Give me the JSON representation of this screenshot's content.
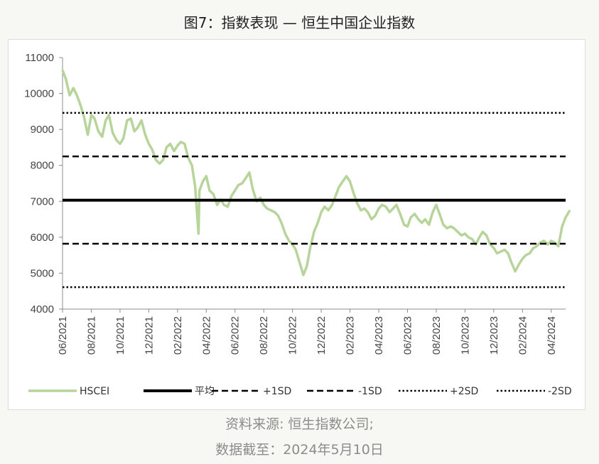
{
  "title": "图7：指数表现 — 恒生中国企业指数",
  "footer": {
    "source": "资料来源: 恒生指数公司;",
    "date": "数据截至：2024年5月10日"
  },
  "colors": {
    "hscei": "#b7d49a",
    "reference": "#000000",
    "axis": "#8c8c8c",
    "text": "#444444"
  },
  "chart_data": {
    "type": "line",
    "ylim": [
      4000,
      11000
    ],
    "yticks": [
      4000,
      5000,
      6000,
      7000,
      8000,
      9000,
      10000,
      11000
    ],
    "xlim": [
      "2021-06",
      "2024-05"
    ],
    "xticks": [
      "06/2021",
      "08/2021",
      "10/2021",
      "12/2021",
      "02/2022",
      "04/2022",
      "06/2022",
      "08/2022",
      "10/2022",
      "12/2022",
      "02/2023",
      "04/2023",
      "06/2023",
      "08/2023",
      "10/2023",
      "12/2023",
      "02/2024",
      "04/2024"
    ],
    "series": [
      {
        "name": "HSCEI",
        "style": "solid-thin",
        "points": [
          [
            "2021-06-01",
            10650
          ],
          [
            "2021-06-08",
            10400
          ],
          [
            "2021-06-16",
            9950
          ],
          [
            "2021-06-24",
            10150
          ],
          [
            "2021-07-01",
            9950
          ],
          [
            "2021-07-08",
            9700
          ],
          [
            "2021-07-16",
            9350
          ],
          [
            "2021-07-24",
            8850
          ],
          [
            "2021-08-01",
            9400
          ],
          [
            "2021-08-08",
            9300
          ],
          [
            "2021-08-16",
            8950
          ],
          [
            "2021-08-24",
            8800
          ],
          [
            "2021-09-01",
            9250
          ],
          [
            "2021-09-08",
            9400
          ],
          [
            "2021-09-16",
            8900
          ],
          [
            "2021-09-24",
            8700
          ],
          [
            "2021-10-01",
            8600
          ],
          [
            "2021-10-08",
            8750
          ],
          [
            "2021-10-16",
            9250
          ],
          [
            "2021-10-24",
            9300
          ],
          [
            "2021-11-01",
            8950
          ],
          [
            "2021-11-08",
            9050
          ],
          [
            "2021-11-16",
            9250
          ],
          [
            "2021-11-24",
            8850
          ],
          [
            "2021-12-01",
            8600
          ],
          [
            "2021-12-08",
            8450
          ],
          [
            "2021-12-16",
            8150
          ],
          [
            "2021-12-24",
            8050
          ],
          [
            "2022-01-01",
            8150
          ],
          [
            "2022-01-08",
            8500
          ],
          [
            "2022-01-16",
            8600
          ],
          [
            "2022-01-24",
            8400
          ],
          [
            "2022-02-01",
            8550
          ],
          [
            "2022-02-08",
            8650
          ],
          [
            "2022-02-16",
            8600
          ],
          [
            "2022-02-24",
            8200
          ],
          [
            "2022-03-01",
            8000
          ],
          [
            "2022-03-08",
            7400
          ],
          [
            "2022-03-15",
            6100
          ],
          [
            "2022-03-17",
            7300
          ],
          [
            "2022-03-24",
            7550
          ],
          [
            "2022-04-01",
            7700
          ],
          [
            "2022-04-08",
            7300
          ],
          [
            "2022-04-16",
            7200
          ],
          [
            "2022-04-24",
            6900
          ],
          [
            "2022-05-01",
            7050
          ],
          [
            "2022-05-08",
            6900
          ],
          [
            "2022-05-16",
            6850
          ],
          [
            "2022-05-24",
            7150
          ],
          [
            "2022-06-01",
            7300
          ],
          [
            "2022-06-08",
            7450
          ],
          [
            "2022-06-16",
            7500
          ],
          [
            "2022-06-24",
            7650
          ],
          [
            "2022-07-01",
            7800
          ],
          [
            "2022-07-08",
            7350
          ],
          [
            "2022-07-16",
            7000
          ],
          [
            "2022-07-24",
            7100
          ],
          [
            "2022-08-01",
            6900
          ],
          [
            "2022-08-08",
            6800
          ],
          [
            "2022-08-16",
            6750
          ],
          [
            "2022-08-24",
            6700
          ],
          [
            "2022-09-01",
            6600
          ],
          [
            "2022-09-08",
            6400
          ],
          [
            "2022-09-16",
            6100
          ],
          [
            "2022-09-24",
            5900
          ],
          [
            "2022-10-01",
            5800
          ],
          [
            "2022-10-08",
            5650
          ],
          [
            "2022-10-16",
            5300
          ],
          [
            "2022-10-24",
            4950
          ],
          [
            "2022-11-01",
            5200
          ],
          [
            "2022-11-08",
            5700
          ],
          [
            "2022-11-16",
            6150
          ],
          [
            "2022-11-24",
            6400
          ],
          [
            "2022-12-01",
            6700
          ],
          [
            "2022-12-08",
            6850
          ],
          [
            "2022-12-16",
            6750
          ],
          [
            "2022-12-24",
            6900
          ],
          [
            "2023-01-01",
            7150
          ],
          [
            "2023-01-08",
            7400
          ],
          [
            "2023-01-16",
            7550
          ],
          [
            "2023-01-24",
            7700
          ],
          [
            "2023-02-01",
            7550
          ],
          [
            "2023-02-08",
            7250
          ],
          [
            "2023-02-16",
            6950
          ],
          [
            "2023-02-24",
            6750
          ],
          [
            "2023-03-01",
            6800
          ],
          [
            "2023-03-08",
            6700
          ],
          [
            "2023-03-16",
            6500
          ],
          [
            "2023-03-24",
            6600
          ],
          [
            "2023-04-01",
            6800
          ],
          [
            "2023-04-08",
            6900
          ],
          [
            "2023-04-16",
            6850
          ],
          [
            "2023-04-24",
            6700
          ],
          [
            "2023-05-01",
            6800
          ],
          [
            "2023-05-08",
            6900
          ],
          [
            "2023-05-16",
            6650
          ],
          [
            "2023-05-24",
            6350
          ],
          [
            "2023-06-01",
            6300
          ],
          [
            "2023-06-08",
            6550
          ],
          [
            "2023-06-16",
            6650
          ],
          [
            "2023-06-24",
            6500
          ],
          [
            "2023-07-01",
            6400
          ],
          [
            "2023-07-08",
            6500
          ],
          [
            "2023-07-16",
            6350
          ],
          [
            "2023-07-24",
            6700
          ],
          [
            "2023-08-01",
            6900
          ],
          [
            "2023-08-08",
            6650
          ],
          [
            "2023-08-16",
            6350
          ],
          [
            "2023-08-24",
            6250
          ],
          [
            "2023-09-01",
            6300
          ],
          [
            "2023-09-08",
            6250
          ],
          [
            "2023-09-16",
            6150
          ],
          [
            "2023-09-24",
            6050
          ],
          [
            "2023-10-01",
            6100
          ],
          [
            "2023-10-08",
            6000
          ],
          [
            "2023-10-16",
            5950
          ],
          [
            "2023-10-24",
            5800
          ],
          [
            "2023-11-01",
            6000
          ],
          [
            "2023-11-08",
            6150
          ],
          [
            "2023-11-16",
            6050
          ],
          [
            "2023-11-24",
            5800
          ],
          [
            "2023-12-01",
            5700
          ],
          [
            "2023-12-08",
            5550
          ],
          [
            "2023-12-16",
            5600
          ],
          [
            "2023-12-24",
            5650
          ],
          [
            "2024-01-01",
            5550
          ],
          [
            "2024-01-08",
            5300
          ],
          [
            "2024-01-16",
            5050
          ],
          [
            "2024-01-24",
            5250
          ],
          [
            "2024-02-01",
            5400
          ],
          [
            "2024-02-08",
            5500
          ],
          [
            "2024-02-16",
            5550
          ],
          [
            "2024-02-24",
            5700
          ],
          [
            "2024-03-01",
            5750
          ],
          [
            "2024-03-08",
            5850
          ],
          [
            "2024-03-16",
            5900
          ],
          [
            "2024-03-24",
            5800
          ],
          [
            "2024-04-01",
            5900
          ],
          [
            "2024-04-08",
            5850
          ],
          [
            "2024-04-16",
            5750
          ],
          [
            "2024-04-24",
            6300
          ],
          [
            "2024-05-01",
            6550
          ],
          [
            "2024-05-10",
            6750
          ]
        ]
      },
      {
        "name": "平均",
        "style": "solid-thick",
        "value": 7030
      },
      {
        "name": "+1SD",
        "style": "dashed",
        "value": 8250
      },
      {
        "name": "-1SD",
        "style": "dashed",
        "value": 5820
      },
      {
        "name": "+2SD",
        "style": "dotted",
        "value": 9460
      },
      {
        "name": "-2SD",
        "style": "dotted",
        "value": 4610
      }
    ]
  }
}
